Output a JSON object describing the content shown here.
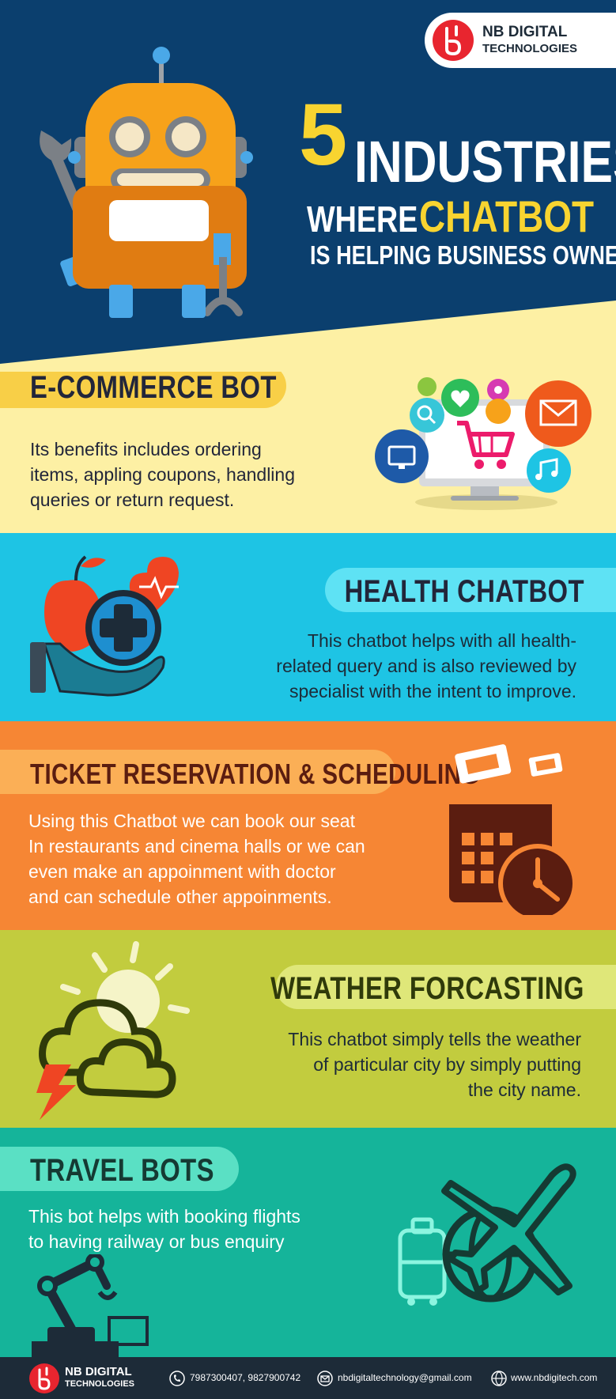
{
  "brand": {
    "name_line1": "NB DIGITAL",
    "name_line2": "TECHNOLOGIES"
  },
  "hero": {
    "number": "5",
    "word_industries": "INDUSTRIES",
    "word_where": "WHERE",
    "word_chatbot": "CHATBOT",
    "subline": "IS HELPING BUSINESS OWNERS"
  },
  "sections": [
    {
      "title": "E-COMMERCE BOT",
      "lines": [
        "Its benefits includes ordering",
        "items, appling coupons, handling",
        "queries or return request."
      ]
    },
    {
      "title": "HEALTH CHATBOT",
      "lines": [
        "This chatbot helps with all health-",
        "related query and is also reviewed by",
        "specialist with the intent to improve."
      ]
    },
    {
      "title": "TICKET RESERVATION & SCHEDULING",
      "lines": [
        "Using this Chatbot we can book our seat",
        "In restaurants and cinema halls or we can",
        "even make an appoinment with doctor",
        "and can schedule other appoinments."
      ]
    },
    {
      "title": "WEATHER FORCASTING",
      "lines": [
        "This chatbot simply tells the weather",
        "of particular city by simply putting",
        "the city name."
      ]
    },
    {
      "title": "TRAVEL BOTS",
      "lines": [
        "This bot helps with booking flights",
        "to having railway or bus enquiry"
      ]
    }
  ],
  "footer": {
    "phone": "7987300407, 9827900742",
    "email": "nbdigitaltechnology@gmail.com",
    "website": "www.nbdigitech.com"
  },
  "colors": {
    "hero_bg": "#0b3f6e",
    "ecommerce_bg": "#fdf0a4",
    "health_bg": "#1ec4e4",
    "ticket_bg": "#f68634",
    "weather_bg": "#c2cc3e",
    "travel_bg": "#15b49a",
    "footer_bg": "#1d2b38",
    "accent_yellow": "#f8d430"
  }
}
